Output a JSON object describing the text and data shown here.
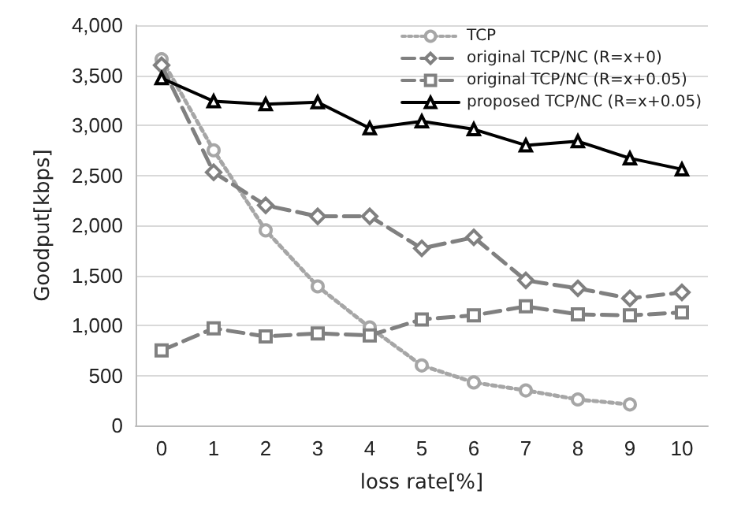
{
  "chart_data": {
    "type": "line",
    "xlabel": "loss rate[%]",
    "ylabel": "Goodput[kbps]",
    "categories": [
      "0",
      "1",
      "2",
      "3",
      "4",
      "5",
      "6",
      "7",
      "8",
      "9",
      "10"
    ],
    "series": [
      {
        "name": "TCP",
        "color": "#a6a6a6",
        "marker": "circle",
        "line_style": "dotted",
        "values": [
          3660,
          2750,
          1950,
          1390,
          980,
          600,
          430,
          350,
          260,
          210,
          null
        ]
      },
      {
        "name": "original TCP/NC (R=x+0)",
        "color": "#808080",
        "marker": "diamond",
        "line_style": "dashed",
        "values": [
          3600,
          2530,
          2200,
          2090,
          2090,
          1770,
          1880,
          1450,
          1370,
          1270,
          1330
        ]
      },
      {
        "name": "original TCP/NC (R=x+0.05)",
        "color": "#808080",
        "marker": "square",
        "line_style": "dashed",
        "values": [
          750,
          970,
          890,
          920,
          900,
          1060,
          1100,
          1190,
          1110,
          1100,
          1130
        ]
      },
      {
        "name": "proposed TCP/NC (R=x+0.05)",
        "color": "#000000",
        "marker": "triangle",
        "line_style": "solid",
        "values": [
          3470,
          3240,
          3210,
          3230,
          2970,
          3040,
          2960,
          2800,
          2840,
          2670,
          2560
        ]
      }
    ],
    "ylim": [
      0,
      4000
    ],
    "yticks": [
      0,
      500,
      {
        "value": 1000,
        "label": "1,000"
      },
      {
        "value": 1500,
        "label": "1,500"
      },
      {
        "value": 2000,
        "label": "2,000"
      },
      {
        "value": 2500,
        "label": "2,500"
      },
      {
        "value": 3000,
        "label": "3,000"
      },
      {
        "value": 3500,
        "label": "3,500"
      },
      {
        "value": 4000,
        "label": "4,000"
      }
    ],
    "grid": "y",
    "legend": "top right"
  }
}
